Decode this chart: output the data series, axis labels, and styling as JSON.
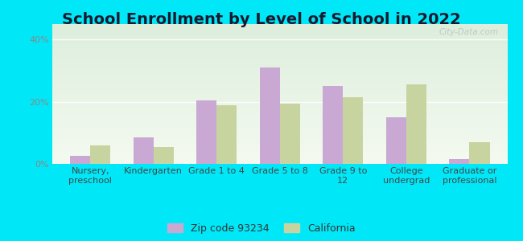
{
  "title": "School Enrollment by Level of School in 2022",
  "categories": [
    "Nursery,\npreschool",
    "Kindergarten",
    "Grade 1 to 4",
    "Grade 5 to 8",
    "Grade 9 to\n12",
    "College\nundergrad",
    "Graduate or\nprofessional"
  ],
  "zip_values": [
    2.5,
    8.5,
    20.5,
    31.0,
    25.0,
    15.0,
    1.5
  ],
  "ca_values": [
    6.0,
    5.5,
    19.0,
    19.5,
    21.5,
    25.5,
    7.0
  ],
  "zip_color": "#c9a8d4",
  "ca_color": "#c8d4a0",
  "background_outer": "#00e8f8",
  "background_inner_top": "#ddeedd",
  "background_inner_bottom": "#f4faf0",
  "ylim": [
    0,
    45
  ],
  "yticks": [
    0,
    20,
    40
  ],
  "ytick_labels": [
    "0%",
    "20%",
    "40%"
  ],
  "legend_zip_label": "Zip code 93234",
  "legend_ca_label": "California",
  "watermark": "City-Data.com",
  "title_fontsize": 14,
  "tick_fontsize": 8,
  "legend_fontsize": 9,
  "ytick_color": "#888888",
  "xtick_color": "#444444"
}
